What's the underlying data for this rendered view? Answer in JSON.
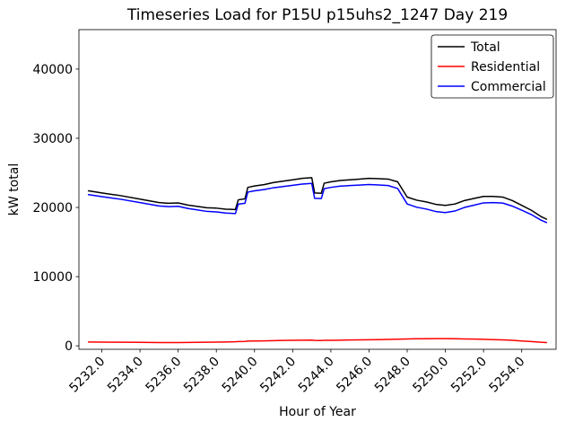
{
  "chart_data": {
    "type": "line",
    "title": "Timeseries Load for P15U p15uhs2_1247  Day 219",
    "xlabel": "Hour of Year",
    "ylabel": "kW total",
    "xlim": [
      5230.8,
      5255.8
    ],
    "ylim": [
      -500,
      45700
    ],
    "grid": false,
    "x_ticks": {
      "values": [
        5232,
        5234,
        5236,
        5238,
        5240,
        5242,
        5244,
        5246,
        5248,
        5250,
        5252,
        5254
      ],
      "labels": [
        "5232.0",
        "5234.0",
        "5236.0",
        "5238.0",
        "5240.0",
        "5242.0",
        "5244.0",
        "5246.0",
        "5248.0",
        "5250.0",
        "5252.0",
        "5254.0"
      ]
    },
    "y_ticks": {
      "values": [
        0,
        10000,
        20000,
        30000,
        40000
      ],
      "labels": [
        "0",
        "10000",
        "20000",
        "30000",
        "40000"
      ]
    },
    "x": [
      5231.3,
      5232,
      5233,
      5234,
      5235,
      5235.5,
      5236,
      5236.5,
      5237,
      5237.5,
      5238,
      5238.5,
      5239,
      5239.15,
      5239.5,
      5239.65,
      5240,
      5240.5,
      5241,
      5241.5,
      5242,
      5242.5,
      5243,
      5243.15,
      5243.5,
      5243.65,
      5244,
      5244.5,
      5245,
      5245.5,
      5246,
      5246.5,
      5247,
      5247.5,
      5248,
      5248.5,
      5249,
      5249.5,
      5250,
      5250.5,
      5251,
      5251.5,
      5252,
      5252.5,
      5253,
      5253.5,
      5254,
      5254.5,
      5255,
      5255.3
    ],
    "series": [
      {
        "name": "Total",
        "color": "#000000",
        "values": [
          22400,
          22100,
          21700,
          21200,
          20700,
          20600,
          20650,
          20350,
          20150,
          19950,
          19900,
          19750,
          19700,
          21100,
          21250,
          22900,
          23100,
          23300,
          23600,
          23800,
          24000,
          24200,
          24300,
          22100,
          22050,
          23500,
          23700,
          23900,
          24000,
          24100,
          24200,
          24150,
          24100,
          23700,
          21500,
          21050,
          20800,
          20450,
          20300,
          20500,
          21000,
          21300,
          21600,
          21600,
          21500,
          21000,
          20300,
          19600,
          18700,
          18300
        ]
      },
      {
        "name": "Residential",
        "color": "#ff0000",
        "values": [
          550,
          540,
          520,
          500,
          480,
          475,
          480,
          490,
          500,
          520,
          540,
          560,
          580,
          620,
          640,
          680,
          700,
          720,
          750,
          780,
          800,
          820,
          830,
          780,
          770,
          790,
          800,
          820,
          840,
          860,
          880,
          900,
          930,
          960,
          1000,
          1020,
          1030,
          1040,
          1040,
          1020,
          1000,
          970,
          940,
          900,
          860,
          800,
          700,
          620,
          520,
          480
        ]
      },
      {
        "name": "Commercial",
        "color": "#0000ff",
        "values": [
          21850,
          21560,
          21180,
          20700,
          20220,
          20125,
          20170,
          19860,
          19650,
          19430,
          19360,
          19190,
          19120,
          20480,
          20610,
          22220,
          22400,
          22580,
          22850,
          23020,
          23200,
          23380,
          23470,
          21320,
          21280,
          22710,
          22900,
          23080,
          23160,
          23240,
          23320,
          23250,
          23170,
          22740,
          20500,
          20030,
          19770,
          19410,
          19260,
          19480,
          20000,
          20330,
          20660,
          20700,
          20640,
          20200,
          19600,
          18980,
          18180,
          17820
        ]
      }
    ],
    "legend": {
      "position": "upper right",
      "entries": [
        "Total",
        "Residential",
        "Commercial"
      ]
    }
  }
}
